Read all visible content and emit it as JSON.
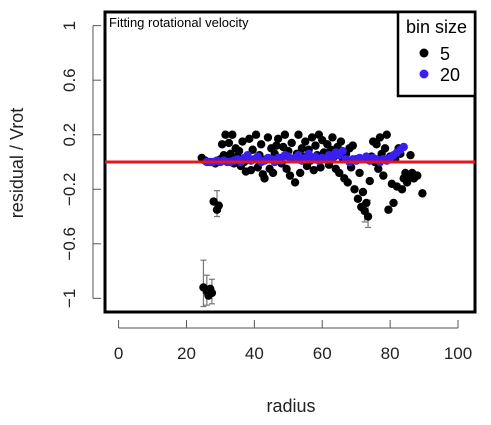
{
  "chart_data": {
    "type": "scatter",
    "title": "Fitting rotational velocity",
    "xlabel": "radius",
    "ylabel": "residual / Vrot",
    "xlim": [
      -4,
      105
    ],
    "ylim": [
      -1.1,
      1.1
    ],
    "x_ticks": [
      0,
      20,
      40,
      60,
      80,
      100
    ],
    "y_ticks": [
      -1,
      -0.6,
      -0.2,
      0.2,
      0.6,
      1
    ],
    "y_tick_labels": [
      "−1",
      "−0.6",
      "−0.2",
      "0.2",
      "0.6",
      "1"
    ],
    "grid": false,
    "reference_line": {
      "y": 0,
      "color": "#e8141e"
    },
    "legend": {
      "title": "bin size",
      "position": "top-right",
      "entries": [
        {
          "label": "5",
          "color": "#000000"
        },
        {
          "label": "20",
          "color": "#3a1ff0"
        }
      ]
    },
    "series": [
      {
        "name": "5",
        "color": "#000000",
        "points": [
          [
            24.5,
            0.03
          ],
          [
            25,
            -0.92
          ],
          [
            25.5,
            0.01
          ],
          [
            26,
            -0.95
          ],
          [
            26.5,
            -0.98
          ],
          [
            27,
            -0.93
          ],
          [
            27.5,
            -0.96
          ],
          [
            28,
            -0.29
          ],
          [
            28.5,
            -0.01
          ],
          [
            29,
            -0.35
          ],
          [
            29.5,
            -0.32
          ],
          [
            30,
            0.02
          ],
          [
            30.5,
            0.13
          ],
          [
            31,
            0.05
          ],
          [
            31.5,
            0.2
          ],
          [
            32,
            0.01
          ],
          [
            32.5,
            0.14
          ],
          [
            33,
            0.06
          ],
          [
            33.5,
            0.2
          ],
          [
            34,
            -0.01
          ],
          [
            34.5,
            0.1
          ],
          [
            35,
            0.04
          ],
          [
            35.5,
            0.08
          ],
          [
            36,
            -0.03
          ],
          [
            36.5,
            0.15
          ],
          [
            37,
            0.0
          ],
          [
            37.5,
            -0.07
          ],
          [
            38,
            0.04
          ],
          [
            38.5,
            0.17
          ],
          [
            39,
            -0.06
          ],
          [
            39.5,
            0.09
          ],
          [
            40,
            0.02
          ],
          [
            40.5,
            0.2
          ],
          [
            41,
            -0.04
          ],
          [
            41.5,
            0.05
          ],
          [
            42,
            0.13
          ],
          [
            42.5,
            -0.09
          ],
          [
            43,
            -0.12
          ],
          [
            43.5,
            0.02
          ],
          [
            44,
            0.18
          ],
          [
            44.5,
            -0.05
          ],
          [
            45,
            0.1
          ],
          [
            45.5,
            -0.08
          ],
          [
            46,
            0.06
          ],
          [
            46.5,
            0.12
          ],
          [
            47,
            0.17
          ],
          [
            47.5,
            0.03
          ],
          [
            48,
            -0.01
          ],
          [
            48.5,
            0.11
          ],
          [
            49,
            0.2
          ],
          [
            49.5,
            -0.05
          ],
          [
            50,
            0.08
          ],
          [
            50.5,
            -0.1
          ],
          [
            51,
            0.14
          ],
          [
            51.5,
            0.02
          ],
          [
            52,
            -0.15
          ],
          [
            52.5,
            0.06
          ],
          [
            53,
            0.2
          ],
          [
            53.5,
            -0.08
          ],
          [
            54,
            0.1
          ],
          [
            54.5,
            0.04
          ],
          [
            55,
            0.15
          ],
          [
            55.5,
            -0.03
          ],
          [
            56,
            0.09
          ],
          [
            56.5,
            0.01
          ],
          [
            57,
            0.18
          ],
          [
            57.5,
            -0.06
          ],
          [
            58,
            0.12
          ],
          [
            58.5,
            0.05
          ],
          [
            59,
            0.2
          ],
          [
            59.5,
            -0.04
          ],
          [
            60,
            0.16
          ],
          [
            60.5,
            0.07
          ],
          [
            61,
            0.02
          ],
          [
            61.5,
            0.13
          ],
          [
            62,
            -0.02
          ],
          [
            62.5,
            0.09
          ],
          [
            63,
            0.18
          ],
          [
            63.5,
            0.04
          ],
          [
            64,
            -0.05
          ],
          [
            64.5,
            0.11
          ],
          [
            65,
            -0.08
          ],
          [
            65.5,
            0.15
          ],
          [
            66,
            0.03
          ],
          [
            66.5,
            -0.12
          ],
          [
            67,
            0.06
          ],
          [
            67.5,
            -0.15
          ],
          [
            68,
            0.1
          ],
          [
            68.5,
            -0.04
          ],
          [
            69,
            0.12
          ],
          [
            69.5,
            -0.2
          ],
          [
            70,
            0.02
          ],
          [
            70.5,
            -0.27
          ],
          [
            71,
            -0.08
          ],
          [
            71.5,
            -0.33
          ],
          [
            72,
            -0.22
          ],
          [
            72.5,
            -0.36
          ],
          [
            73,
            -0.3
          ],
          [
            73.5,
            -0.4
          ],
          [
            74,
            -0.14
          ],
          [
            74.5,
            0.04
          ],
          [
            75,
            0.15
          ],
          [
            75.5,
            0.0
          ],
          [
            76,
            0.13
          ],
          [
            76.5,
            -0.05
          ],
          [
            77,
            0.18
          ],
          [
            77.5,
            0.06
          ],
          [
            78,
            -0.1
          ],
          [
            78.5,
            0.1
          ],
          [
            79,
            0.2
          ],
          [
            79.5,
            -0.35
          ],
          [
            80,
            0.04
          ],
          [
            80.5,
            -0.16
          ],
          [
            81,
            -0.3
          ],
          [
            81.5,
            0.02
          ],
          [
            82,
            -0.18
          ],
          [
            82.5,
            0.1
          ],
          [
            83,
            0.06
          ],
          [
            83.5,
            -0.2
          ],
          [
            84,
            -0.12
          ],
          [
            84.5,
            -0.08
          ],
          [
            85,
            -0.15
          ],
          [
            85.5,
            -0.1
          ],
          [
            86,
            0.05
          ],
          [
            86.5,
            -0.08
          ],
          [
            87,
            -0.12
          ],
          [
            88,
            -0.1
          ],
          [
            89.5,
            -0.23
          ]
        ],
        "error_bars": [
          {
            "x": 25,
            "y": -0.92,
            "low": -1.06,
            "high": -0.72
          },
          {
            "x": 26,
            "y": -0.95,
            "low": -1.05,
            "high": -0.83
          },
          {
            "x": 27.5,
            "y": -0.96,
            "low": -1.04,
            "high": -0.86
          },
          {
            "x": 29,
            "y": -0.35,
            "low": -0.4,
            "high": -0.21
          },
          {
            "x": 73.5,
            "y": -0.4,
            "low": -0.48,
            "high": -0.28
          },
          {
            "x": 72.5,
            "y": -0.36,
            "low": -0.44,
            "high": -0.3
          }
        ]
      },
      {
        "name": "20",
        "color": "#3a1ff0",
        "points": [
          [
            26,
            0.0
          ],
          [
            27,
            0.0
          ],
          [
            28,
            0.0
          ],
          [
            29,
            0.01
          ],
          [
            30,
            0.0
          ],
          [
            31,
            0.01
          ],
          [
            32,
            0.0
          ],
          [
            33,
            0.0
          ],
          [
            34,
            0.01
          ],
          [
            35,
            0.02
          ],
          [
            36,
            0.0
          ],
          [
            37,
            0.03
          ],
          [
            38,
            0.05
          ],
          [
            39,
            0.01
          ],
          [
            40,
            0.02
          ],
          [
            41,
            0.04
          ],
          [
            42,
            0.0
          ],
          [
            43,
            0.01
          ],
          [
            44,
            0.03
          ],
          [
            45,
            0.02
          ],
          [
            46,
            0.0
          ],
          [
            47,
            0.03
          ],
          [
            48,
            0.01
          ],
          [
            49,
            0.05
          ],
          [
            50,
            0.04
          ],
          [
            51,
            0.02
          ],
          [
            52,
            0.03
          ],
          [
            53,
            0.05
          ],
          [
            54,
            0.01
          ],
          [
            55,
            0.03
          ],
          [
            56,
            0.06
          ],
          [
            57,
            0.02
          ],
          [
            58,
            0.04
          ],
          [
            59,
            0.01
          ],
          [
            60,
            0.03
          ],
          [
            61,
            0.02
          ],
          [
            62,
            0.05
          ],
          [
            63,
            0.03
          ],
          [
            64,
            0.07
          ],
          [
            65,
            0.05
          ],
          [
            66,
            0.08
          ],
          [
            67,
            0.02
          ],
          [
            68,
            0.0
          ],
          [
            69,
            0.02
          ],
          [
            70,
            0.01
          ],
          [
            71,
            0.03
          ],
          [
            72,
            0.02
          ],
          [
            73,
            0.04
          ],
          [
            74,
            0.01
          ],
          [
            75,
            0.03
          ],
          [
            76,
            0.02
          ],
          [
            77,
            0.0
          ],
          [
            78,
            0.02
          ],
          [
            79,
            0.01
          ],
          [
            80,
            0.03
          ],
          [
            81,
            0.05
          ],
          [
            82,
            0.07
          ],
          [
            83,
            0.09
          ],
          [
            84,
            0.11
          ]
        ]
      }
    ]
  }
}
